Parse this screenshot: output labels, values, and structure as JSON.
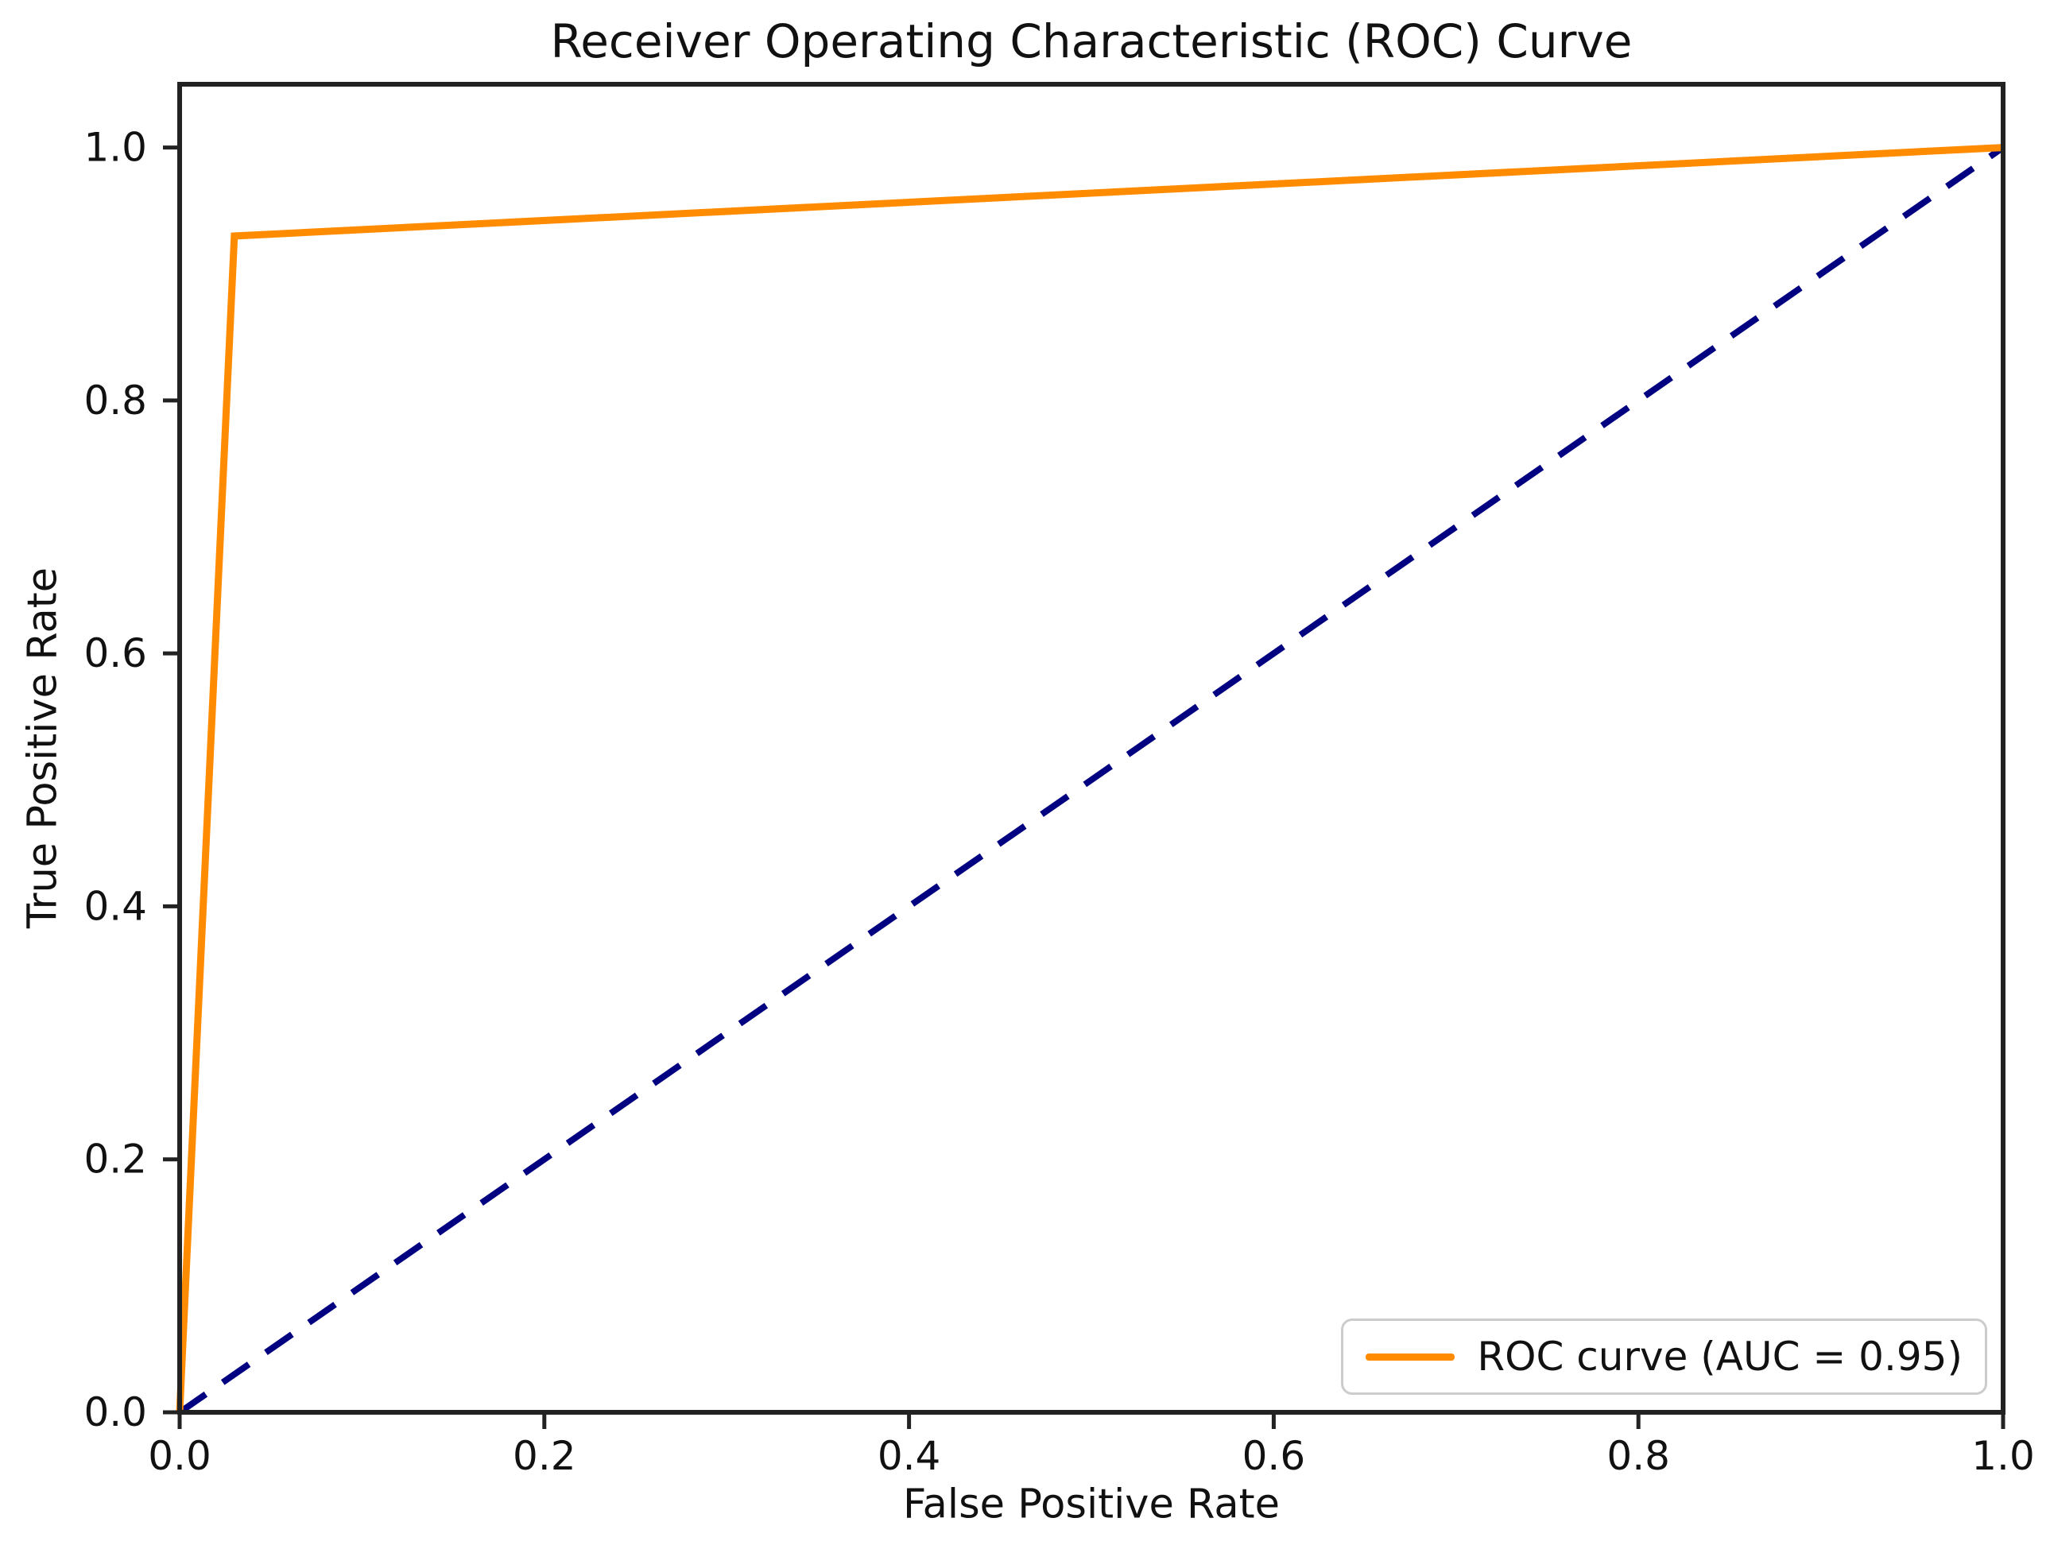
{
  "chart_data": {
    "type": "line",
    "title": "Receiver Operating Characteristic (ROC) Curve",
    "xlabel": "False Positive Rate",
    "ylabel": "True Positive Rate",
    "xlim": [
      0.0,
      1.0
    ],
    "ylim": [
      0.0,
      1.05
    ],
    "x_ticks": [
      0.0,
      0.2,
      0.4,
      0.6,
      0.8,
      1.0
    ],
    "x_tick_labels": [
      "0.0",
      "0.2",
      "0.4",
      "0.6",
      "0.8",
      "1.0"
    ],
    "y_ticks": [
      0.0,
      0.2,
      0.4,
      0.6,
      0.8,
      1.0
    ],
    "y_tick_labels": [
      "0.0",
      "0.2",
      "0.4",
      "0.6",
      "0.8",
      "1.0"
    ],
    "grid": false,
    "legend_position": "lower right",
    "auc": 0.95,
    "series": [
      {
        "name": "ROC curve (AUC = 0.95)",
        "color": "#ff8c00",
        "style": "solid",
        "line_width": 9,
        "in_legend": true,
        "x": [
          0.0,
          0.03,
          1.0
        ],
        "y": [
          0.0,
          0.93,
          1.0
        ]
      },
      {
        "name": "chance-diagonal",
        "color": "#000080",
        "style": "dashed",
        "line_width": 8,
        "in_legend": false,
        "x": [
          0.0,
          1.0
        ],
        "y": [
          0.0,
          1.0
        ]
      }
    ]
  },
  "legend": {
    "label": "ROC curve (AUC = 0.95)"
  },
  "colors": {
    "roc_line": "#ff8c00",
    "diagonal_line": "#000080",
    "spine": "#222222",
    "text": "#111111",
    "legend_border": "#cccccc",
    "background": "#ffffff"
  }
}
